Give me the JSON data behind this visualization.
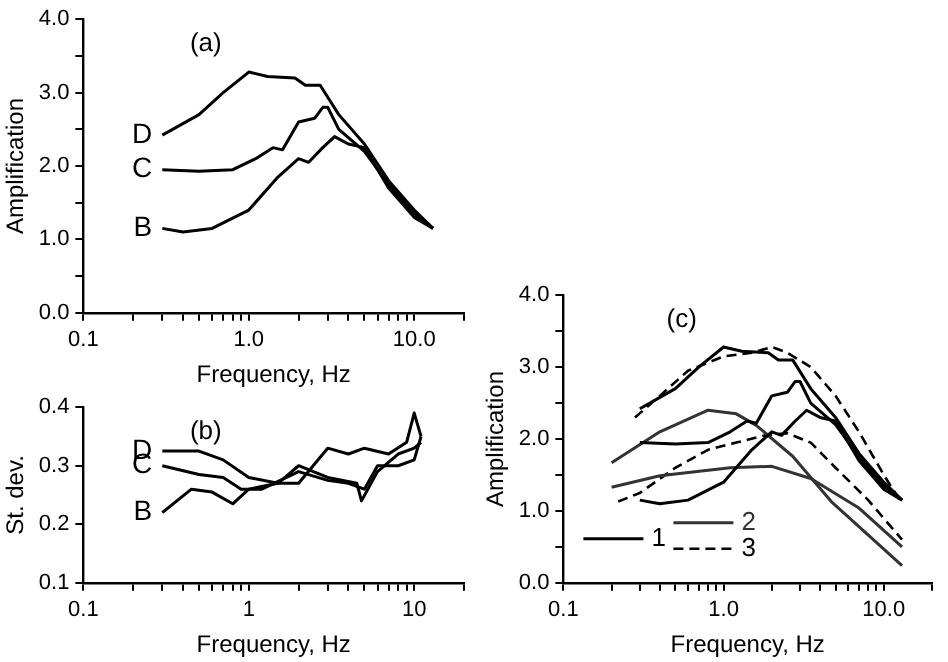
{
  "chart_data": [
    {
      "type": "line",
      "annotations": [
        "(a)"
      ],
      "xlabel": "Frequency, Hz",
      "ylabel": "Amplification",
      "log": "x",
      "grid": false,
      "legend": false,
      "xlim": [
        0.1,
        20
      ],
      "ylim": [
        0,
        4
      ],
      "xticks": [
        {
          "value": 0.1,
          "label": "0.1"
        },
        {
          "value": 0.2,
          "label": null
        },
        {
          "value": 0.3,
          "label": null
        },
        {
          "value": 0.4,
          "label": null
        },
        {
          "value": 0.5,
          "label": null
        },
        {
          "value": 0.6,
          "label": null
        },
        {
          "value": 0.7,
          "label": null
        },
        {
          "value": 0.8,
          "label": null
        },
        {
          "value": 0.9,
          "label": null
        },
        {
          "value": 1,
          "label": "1.0"
        },
        {
          "value": 2,
          "label": null
        },
        {
          "value": 3,
          "label": null
        },
        {
          "value": 4,
          "label": null
        },
        {
          "value": 5,
          "label": null
        },
        {
          "value": 6,
          "label": null
        },
        {
          "value": 7,
          "label": null
        },
        {
          "value": 8,
          "label": null
        },
        {
          "value": 9,
          "label": null
        },
        {
          "value": 10,
          "label": "10.0"
        },
        {
          "value": 20,
          "label": null
        }
      ],
      "yticks": [
        {
          "value": 0,
          "label": "0.0"
        },
        {
          "value": 0.5,
          "label": null
        },
        {
          "value": 1,
          "label": "1.0"
        },
        {
          "value": 1.5,
          "label": null
        },
        {
          "value": 2,
          "label": "2.0"
        },
        {
          "value": 2.5,
          "label": null
        },
        {
          "value": 3,
          "label": "3.0"
        },
        {
          "value": 3.5,
          "label": null
        },
        {
          "value": 4,
          "label": "4.0"
        }
      ],
      "series": [
        {
          "name": "D",
          "color": "#000000",
          "x": [
            0.3,
            0.5,
            0.7,
            1.0,
            1.3,
            1.9,
            2.2,
            2.7,
            3.5,
            5,
            7,
            10,
            13
          ],
          "values": [
            2.42,
            2.7,
            3.0,
            3.28,
            3.22,
            3.2,
            3.1,
            3.1,
            2.7,
            2.3,
            1.8,
            1.4,
            1.15
          ]
        },
        {
          "name": "C",
          "color": "#000000",
          "x": [
            0.3,
            0.5,
            0.8,
            1.1,
            1.4,
            1.6,
            2.0,
            2.5,
            2.8,
            3.0,
            3.5,
            5,
            7,
            10,
            13
          ],
          "values": [
            1.95,
            1.93,
            1.95,
            2.1,
            2.25,
            2.22,
            2.6,
            2.65,
            2.8,
            2.8,
            2.5,
            2.2,
            1.75,
            1.35,
            1.15
          ]
        },
        {
          "name": "B",
          "color": "#000000",
          "x": [
            0.3,
            0.4,
            0.6,
            1.0,
            1.5,
            2.0,
            2.3,
            2.8,
            3.3,
            4,
            5,
            7,
            10,
            13
          ],
          "values": [
            1.15,
            1.1,
            1.15,
            1.4,
            1.85,
            2.1,
            2.05,
            2.25,
            2.4,
            2.3,
            2.25,
            1.7,
            1.3,
            1.15
          ]
        }
      ]
    },
    {
      "type": "line",
      "annotations": [
        "(b)"
      ],
      "xlabel": "Frequency, Hz",
      "ylabel": "St. dev.",
      "log": "x",
      "grid": false,
      "legend": false,
      "xlim": [
        0.1,
        20
      ],
      "ylim": [
        0.1,
        0.4
      ],
      "xticks": [
        {
          "value": 0.1,
          "label": "0.1"
        },
        {
          "value": 0.2,
          "label": null
        },
        {
          "value": 0.3,
          "label": null
        },
        {
          "value": 0.4,
          "label": null
        },
        {
          "value": 0.5,
          "label": null
        },
        {
          "value": 0.6,
          "label": null
        },
        {
          "value": 0.7,
          "label": null
        },
        {
          "value": 0.8,
          "label": null
        },
        {
          "value": 0.9,
          "label": null
        },
        {
          "value": 1,
          "label": "1"
        },
        {
          "value": 2,
          "label": null
        },
        {
          "value": 3,
          "label": null
        },
        {
          "value": 4,
          "label": null
        },
        {
          "value": 5,
          "label": null
        },
        {
          "value": 6,
          "label": null
        },
        {
          "value": 7,
          "label": null
        },
        {
          "value": 8,
          "label": null
        },
        {
          "value": 9,
          "label": null
        },
        {
          "value": 10,
          "label": "10"
        },
        {
          "value": 20,
          "label": null
        }
      ],
      "yticks": [
        0.1,
        0.2,
        0.3,
        0.4
      ],
      "series": [
        {
          "name": "D",
          "color": "#000000",
          "x": [
            0.3,
            0.5,
            0.7,
            1.0,
            1.5,
            2,
            3,
            4,
            5,
            7,
            9,
            10,
            11
          ],
          "values": [
            0.325,
            0.325,
            0.31,
            0.28,
            0.27,
            0.27,
            0.33,
            0.32,
            0.33,
            0.32,
            0.34,
            0.39,
            0.35
          ]
        },
        {
          "name": "C",
          "color": "#000000",
          "x": [
            0.3,
            0.5,
            0.7,
            0.9,
            1.2,
            2,
            3,
            4,
            5,
            6,
            8,
            10,
            11
          ],
          "values": [
            0.3,
            0.285,
            0.28,
            0.26,
            0.26,
            0.29,
            0.275,
            0.27,
            0.26,
            0.3,
            0.3,
            0.31,
            0.35
          ]
        },
        {
          "name": "B",
          "color": "#000000",
          "x": [
            0.3,
            0.45,
            0.6,
            0.8,
            1,
            1.5,
            2,
            3,
            4.5,
            4.8,
            6,
            8,
            10,
            11
          ],
          "values": [
            0.22,
            0.26,
            0.255,
            0.235,
            0.26,
            0.27,
            0.3,
            0.28,
            0.27,
            0.24,
            0.29,
            0.32,
            0.33,
            0.34
          ]
        }
      ]
    },
    {
      "type": "line",
      "annotations": [
        "(c)"
      ],
      "xlabel": "Frequency, Hz",
      "ylabel": "Amplification",
      "log": "x",
      "grid": false,
      "legend": "bottom left",
      "xlim": [
        0.1,
        20
      ],
      "ylim": [
        0,
        4
      ],
      "xticks": [
        {
          "value": 0.1,
          "label": "0.1"
        },
        {
          "value": 0.2,
          "label": null
        },
        {
          "value": 0.3,
          "label": null
        },
        {
          "value": 0.4,
          "label": null
        },
        {
          "value": 0.5,
          "label": null
        },
        {
          "value": 0.6,
          "label": null
        },
        {
          "value": 0.7,
          "label": null
        },
        {
          "value": 0.8,
          "label": null
        },
        {
          "value": 0.9,
          "label": null
        },
        {
          "value": 1,
          "label": "1.0"
        },
        {
          "value": 2,
          "label": null
        },
        {
          "value": 3,
          "label": null
        },
        {
          "value": 4,
          "label": null
        },
        {
          "value": 5,
          "label": null
        },
        {
          "value": 6,
          "label": null
        },
        {
          "value": 7,
          "label": null
        },
        {
          "value": 8,
          "label": null
        },
        {
          "value": 9,
          "label": null
        },
        {
          "value": 10,
          "label": "10.0"
        },
        {
          "value": 20,
          "label": null
        }
      ],
      "yticks": [
        {
          "value": 0,
          "label": "0.0"
        },
        {
          "value": 0.5,
          "label": null
        },
        {
          "value": 1,
          "label": "1.0"
        },
        {
          "value": 1.5,
          "label": null
        },
        {
          "value": 2,
          "label": "2.0"
        },
        {
          "value": 2.5,
          "label": null
        },
        {
          "value": 3,
          "label": "3.0"
        },
        {
          "value": 3.5,
          "label": null
        },
        {
          "value": 4,
          "label": "4.0"
        }
      ],
      "series": [
        {
          "name": "1",
          "color": "#000000",
          "line_style": "solid",
          "x": [
            0.3,
            0.5,
            0.7,
            1.0,
            1.3,
            1.9,
            2.2,
            2.7,
            3.5,
            5,
            7,
            10,
            13
          ],
          "values": [
            2.42,
            2.7,
            3.0,
            3.28,
            3.22,
            3.2,
            3.1,
            3.1,
            2.7,
            2.3,
            1.8,
            1.4,
            1.15
          ]
        },
        {
          "color": "#000000",
          "line_style": "solid",
          "x": [
            0.3,
            0.5,
            0.8,
            1.1,
            1.4,
            1.6,
            2.0,
            2.5,
            2.8,
            3.0,
            3.5,
            5,
            7,
            10,
            13
          ],
          "values": [
            1.95,
            1.93,
            1.95,
            2.1,
            2.25,
            2.22,
            2.6,
            2.65,
            2.8,
            2.8,
            2.5,
            2.2,
            1.75,
            1.35,
            1.15
          ]
        },
        {
          "color": "#000000",
          "line_style": "solid",
          "x": [
            0.3,
            0.4,
            0.6,
            1.0,
            1.5,
            2.0,
            2.3,
            2.8,
            3.3,
            4,
            5,
            7,
            10,
            13
          ],
          "values": [
            1.15,
            1.1,
            1.15,
            1.4,
            1.85,
            2.1,
            2.05,
            2.25,
            2.4,
            2.3,
            2.25,
            1.7,
            1.3,
            1.15
          ]
        },
        {
          "name": "2",
          "color": "#333333",
          "line_style": "solid",
          "x": [
            0.2,
            0.4,
            0.8,
            1.2,
            1.6,
            2.7,
            4.7,
            7,
            13
          ],
          "values": [
            1.67,
            2.1,
            2.4,
            2.35,
            2.19,
            1.76,
            1.13,
            0.78,
            0.24
          ]
        },
        {
          "color": "#333333",
          "line_style": "solid",
          "x": [
            0.2,
            0.4,
            1.1,
            2,
            3.5,
            7,
            13
          ],
          "values": [
            1.33,
            1.49,
            1.6,
            1.62,
            1.45,
            1.04,
            0.5
          ]
        },
        {
          "name": "3",
          "color": "#000000",
          "line_style": "dashed",
          "x": [
            0.28,
            0.4,
            0.6,
            1.0,
            1.5,
            2.0,
            2.5,
            3.5,
            5,
            7,
            10,
            13
          ],
          "values": [
            2.3,
            2.6,
            2.95,
            3.15,
            3.2,
            3.28,
            3.2,
            3.0,
            2.6,
            2.1,
            1.5,
            1.1
          ]
        },
        {
          "color": "#000000",
          "line_style": "dashed",
          "x": [
            0.22,
            0.3,
            0.5,
            0.8,
            1.2,
            1.8,
            2.5,
            3.5,
            5,
            8,
            13
          ],
          "values": [
            1.13,
            1.25,
            1.6,
            1.85,
            1.95,
            2.05,
            2.08,
            1.95,
            1.6,
            1.15,
            0.6
          ]
        }
      ]
    }
  ]
}
